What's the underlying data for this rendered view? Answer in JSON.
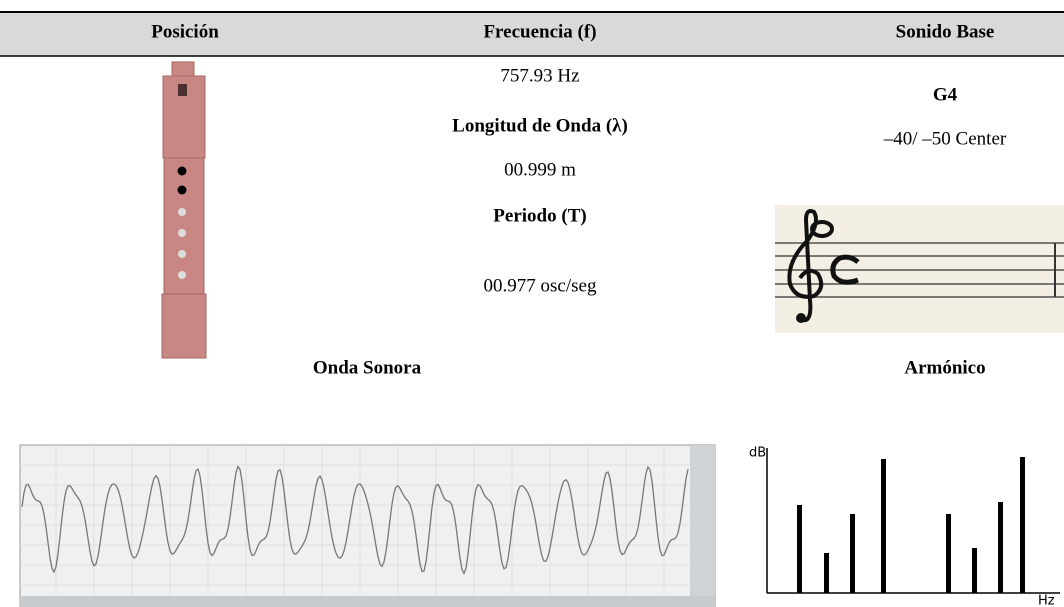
{
  "header": {
    "position": "Posición",
    "frequency": "Frecuencia (f)",
    "base_sound": "Sonido Base"
  },
  "frequency_cell": {
    "frequency": "757.93 Hz",
    "wavelength_label": "Longitud de Onda (λ)",
    "wavelength": "00.999 m",
    "period_label": "Periodo (T)",
    "period": "00.977 osc/seg"
  },
  "base_sound_cell": {
    "note": "G4",
    "tuning": "–40/ –50 Center"
  },
  "sections": {
    "sound_wave": "Onda Sonora",
    "harmonic": "Armónico"
  },
  "harmonic_chart": {
    "y_label": "dB",
    "x_label": "Hz"
  }
}
